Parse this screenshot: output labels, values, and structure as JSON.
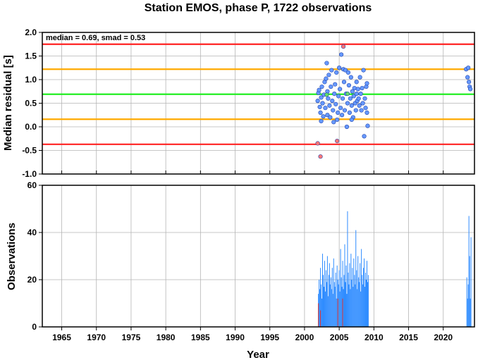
{
  "chart_data": [
    {
      "type": "scatter",
      "title": "Station EMOS, phase P, 1722 observations",
      "ylabel": "Median residual [s]",
      "annotation": "median = 0.69, smad = 0.53",
      "xlim": [
        1962.2,
        2024.5
      ],
      "ylim": [
        -1.0,
        2.0
      ],
      "grid": true,
      "x_ticks": [
        "1965",
        "1970",
        "1975",
        "1980",
        "1985",
        "1990",
        "1995",
        "2000",
        "2005",
        "2010",
        "2015",
        "2020"
      ],
      "y_ticks": [
        "-1.0",
        "-0.5",
        "0.0",
        "0.5",
        "1.0",
        "1.5",
        "2.0"
      ],
      "reference_lines": [
        {
          "y": 1.75,
          "color": "#ff2222"
        },
        {
          "y": 1.22,
          "color": "#ffaa00"
        },
        {
          "y": 0.69,
          "color": "#22ee22"
        },
        {
          "y": 0.16,
          "color": "#ffaa00"
        },
        {
          "y": -0.37,
          "color": "#ff2222"
        }
      ],
      "series": [
        {
          "color": "#6699ff",
          "points": [
            [
              2001.9,
              0.55
            ],
            [
              2002.0,
              0.72
            ],
            [
              2002.1,
              0.78
            ],
            [
              2002.2,
              0.42
            ],
            [
              2002.3,
              0.3
            ],
            [
              2002.4,
              0.62
            ],
            [
              2002.4,
              0.12
            ],
            [
              2002.5,
              0.85
            ],
            [
              2002.6,
              0.5
            ],
            [
              2002.7,
              0.22
            ],
            [
              2002.8,
              0.68
            ],
            [
              2002.9,
              0.95
            ],
            [
              2003.0,
              0.4
            ],
            [
              2003.1,
              1.02
            ],
            [
              2003.2,
              1.35
            ],
            [
              2003.3,
              0.25
            ],
            [
              2003.3,
              0.75
            ],
            [
              2003.4,
              0.6
            ],
            [
              2003.5,
              1.1
            ],
            [
              2003.6,
              0.45
            ],
            [
              2003.7,
              0.2
            ],
            [
              2003.8,
              0.85
            ],
            [
              2003.9,
              1.2
            ],
            [
              2004.0,
              0.55
            ],
            [
              2004.1,
              0.35
            ],
            [
              2004.2,
              0.1
            ],
            [
              2004.3,
              0.7
            ],
            [
              2004.4,
              0.9
            ],
            [
              2004.5,
              0.48
            ],
            [
              2004.6,
              1.15
            ],
            [
              2004.7,
              0.15
            ],
            [
              2004.8,
              0.3
            ],
            [
              2004.9,
              0.65
            ],
            [
              2005.0,
              1.25
            ],
            [
              2005.1,
              0.8
            ],
            [
              2005.2,
              0.4
            ],
            [
              2005.3,
              1.53
            ],
            [
              2005.4,
              0.25
            ],
            [
              2005.5,
              0.6
            ],
            [
              2005.6,
              1.22
            ],
            [
              2005.7,
              0.95
            ],
            [
              2005.8,
              0.35
            ],
            [
              2005.9,
              1.2
            ],
            [
              2006.0,
              0.7
            ],
            [
              2006.1,
              0.0
            ],
            [
              2006.2,
              0.5
            ],
            [
              2006.3,
              1.15
            ],
            [
              2006.4,
              0.88
            ],
            [
              2006.5,
              0.3
            ],
            [
              2006.6,
              0.6
            ],
            [
              2006.7,
              1.05
            ],
            [
              2006.8,
              0.45
            ],
            [
              2006.9,
              0.75
            ],
            [
              2007.0,
              0.2
            ],
            [
              2007.1,
              0.65
            ],
            [
              2007.2,
              0.82
            ],
            [
              2007.3,
              0.5
            ],
            [
              2007.4,
              0.35
            ],
            [
              2007.5,
              0.7
            ],
            [
              2007.6,
              0.55
            ],
            [
              2007.7,
              0.8
            ],
            [
              2007.8,
              0.6
            ],
            [
              2007.9,
              0.45
            ],
            [
              2008.0,
              1.05
            ],
            [
              2008.1,
              0.7
            ],
            [
              2008.2,
              0.35
            ],
            [
              2008.3,
              0.82
            ],
            [
              2008.4,
              0.5
            ],
            [
              2008.5,
              1.2
            ],
            [
              2008.6,
              -0.2
            ],
            [
              2008.7,
              0.6
            ],
            [
              2008.8,
              0.4
            ],
            [
              2008.9,
              0.85
            ],
            [
              2009.0,
              0.92
            ],
            [
              2009.1,
              0.02
            ],
            [
              2009.0,
              0.3
            ],
            [
              2007.5,
              0.95
            ],
            [
              2006.8,
              0.15
            ],
            [
              2023.3,
              1.22
            ],
            [
              2023.5,
              1.05
            ],
            [
              2023.6,
              1.25
            ],
            [
              2023.7,
              0.95
            ],
            [
              2023.8,
              0.85
            ],
            [
              2023.9,
              0.8
            ]
          ]
        },
        {
          "color": "#ff7777",
          "points": [
            [
              2001.9,
              -0.35
            ],
            [
              2002.3,
              -0.63
            ],
            [
              2004.7,
              -0.3
            ],
            [
              2005.6,
              1.7
            ]
          ]
        },
        {
          "color": "#66dd66",
          "points": [
            [
              2003.2,
              0.68
            ],
            [
              2006.2,
              0.7
            ]
          ]
        }
      ]
    },
    {
      "type": "bar",
      "xlabel": "Year",
      "ylabel": "Observations",
      "xlim": [
        1962.2,
        2024.5
      ],
      "ylim": [
        0,
        60
      ],
      "grid": true,
      "x_ticks": [
        "1965",
        "1970",
        "1975",
        "1980",
        "1985",
        "1990",
        "1995",
        "2000",
        "2005",
        "2010",
        "2015",
        "2020"
      ],
      "y_ticks": [
        "0",
        "20",
        "40",
        "60"
      ],
      "bar_width_years": 0.085,
      "series": [
        {
          "color": "#2f8cff",
          "x": [
            2002.0,
            2002.1,
            2002.2,
            2002.3,
            2002.4,
            2002.5,
            2002.6,
            2002.7,
            2002.8,
            2002.9,
            2003.0,
            2003.1,
            2003.2,
            2003.3,
            2003.4,
            2003.5,
            2003.6,
            2003.7,
            2003.8,
            2003.9,
            2004.0,
            2004.1,
            2004.2,
            2004.3,
            2004.4,
            2004.5,
            2004.6,
            2004.7,
            2004.8,
            2004.9,
            2005.0,
            2005.1,
            2005.2,
            2005.3,
            2005.4,
            2005.5,
            2005.6,
            2005.7,
            2005.8,
            2005.9,
            2006.0,
            2006.1,
            2006.2,
            2006.3,
            2006.4,
            2006.5,
            2006.6,
            2006.7,
            2006.8,
            2006.9,
            2007.0,
            2007.1,
            2007.2,
            2007.3,
            2007.4,
            2007.5,
            2007.6,
            2007.7,
            2007.8,
            2007.9,
            2008.0,
            2008.1,
            2008.2,
            2008.3,
            2008.4,
            2008.5,
            2008.6,
            2008.7,
            2008.8,
            2008.9,
            2009.0,
            2009.1,
            2009.2,
            2023.4,
            2023.5,
            2023.6,
            2023.7,
            2023.8,
            2023.9,
            2024.0
          ],
          "values": [
            14,
            20,
            16,
            25,
            18,
            12,
            31,
            22,
            17,
            28,
            15,
            24,
            19,
            30,
            13,
            22,
            27,
            18,
            21,
            16,
            25,
            14,
            29,
            19,
            17,
            23,
            12,
            26,
            20,
            18,
            24,
            15,
            33,
            21,
            17,
            28,
            16,
            22,
            35,
            19,
            26,
            14,
            49,
            23,
            18,
            27,
            16,
            31,
            20,
            25,
            17,
            29,
            22,
            18,
            41,
            24,
            16,
            30,
            21,
            19,
            27,
            15,
            33,
            22,
            18,
            25,
            29,
            17,
            23,
            20,
            28,
            19,
            22,
            21,
            12,
            18,
            47,
            30,
            12,
            38
          ]
        },
        {
          "color": "#dd3333",
          "x": [
            2002.0,
            2002.3,
            2004.8,
            2005.5
          ],
          "values": [
            10,
            7,
            12,
            12
          ]
        }
      ]
    }
  ]
}
